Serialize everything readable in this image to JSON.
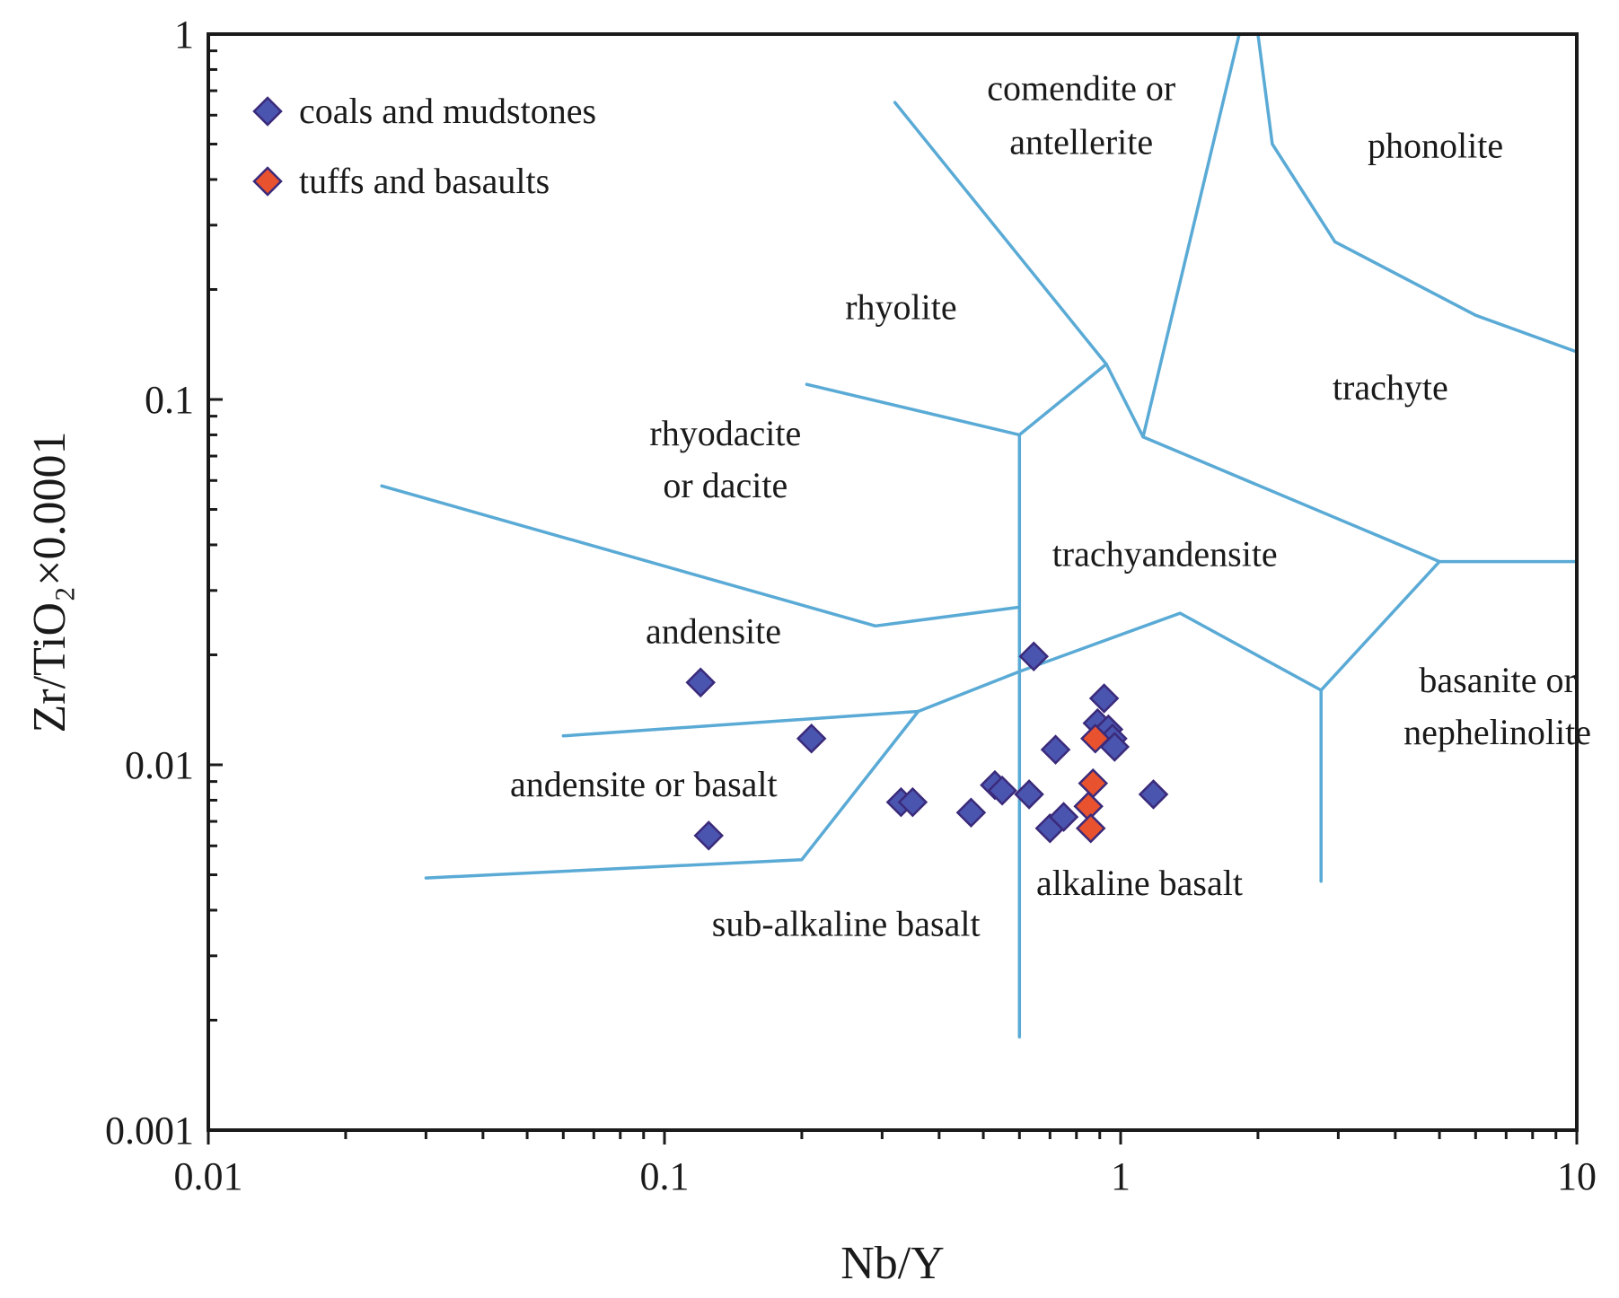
{
  "chart_data": {
    "type": "scatter",
    "xscale": "log",
    "yscale": "log",
    "xlim": [
      0.01,
      10
    ],
    "ylim": [
      0.001,
      1
    ],
    "xlabel": "Nb/Y",
    "ylabel": "Zr/TiO₂×0.0001",
    "x_tick_labels": [
      {
        "value": 0.01,
        "label": "0.01"
      },
      {
        "value": 0.1,
        "label": "0.1"
      },
      {
        "value": 1,
        "label": "1"
      },
      {
        "value": 10,
        "label": "10"
      }
    ],
    "y_tick_labels": [
      {
        "value": 0.001,
        "label": "0.001"
      },
      {
        "value": 0.01,
        "label": "0.01"
      },
      {
        "value": 0.1,
        "label": "0.1"
      },
      {
        "value": 1,
        "label": "1"
      }
    ],
    "legend_position": "top-left",
    "series": [
      {
        "name": "coals and mudstones",
        "color": "#4a55b0",
        "marker": "diamond",
        "points": [
          [
            0.12,
            0.0168
          ],
          [
            0.21,
            0.0118
          ],
          [
            0.125,
            0.0064
          ],
          [
            0.33,
            0.0079
          ],
          [
            0.35,
            0.0079
          ],
          [
            0.47,
            0.0074
          ],
          [
            0.53,
            0.0088
          ],
          [
            0.55,
            0.0085
          ],
          [
            0.63,
            0.0083
          ],
          [
            0.645,
            0.0198
          ],
          [
            0.7,
            0.0067
          ],
          [
            0.72,
            0.011
          ],
          [
            0.75,
            0.0072
          ],
          [
            0.89,
            0.013
          ],
          [
            0.92,
            0.0152
          ],
          [
            0.94,
            0.0125
          ],
          [
            0.96,
            0.0118
          ],
          [
            0.97,
            0.0112
          ],
          [
            1.18,
            0.0083
          ]
        ]
      },
      {
        "name": "tuffs and basaults",
        "color": "#e8522e",
        "marker": "diamond",
        "points": [
          [
            0.85,
            0.0077
          ],
          [
            0.86,
            0.0067
          ],
          [
            0.87,
            0.0089
          ],
          [
            0.88,
            0.0118
          ]
        ]
      }
    ],
    "field_boundaries": [
      [
        [
          0.32,
          0.65
        ],
        [
          0.93,
          0.125
        ],
        [
          1.12,
          0.079
        ],
        [
          1.82,
          1.0
        ]
      ],
      [
        [
          2.0,
          1.0
        ],
        [
          2.15,
          0.5
        ],
        [
          2.95,
          0.27
        ],
        [
          6.0,
          0.17
        ],
        [
          10,
          0.135
        ]
      ],
      [
        [
          0.205,
          0.11
        ],
        [
          0.6,
          0.08
        ],
        [
          0.93,
          0.125
        ]
      ],
      [
        [
          1.12,
          0.079
        ],
        [
          5.0,
          0.036
        ],
        [
          10,
          0.036
        ]
      ],
      [
        [
          0.6,
          0.08
        ],
        [
          0.6,
          0.0018
        ]
      ],
      [
        [
          0.024,
          0.058
        ],
        [
          0.29,
          0.024
        ],
        [
          0.6,
          0.027
        ]
      ],
      [
        [
          0.06,
          0.012
        ],
        [
          0.36,
          0.014
        ],
        [
          0.6,
          0.018
        ],
        [
          1.35,
          0.026
        ],
        [
          2.75,
          0.016
        ],
        [
          5.0,
          0.036
        ]
      ],
      [
        [
          2.75,
          0.016
        ],
        [
          2.75,
          0.0048
        ]
      ],
      [
        [
          0.03,
          0.0049
        ],
        [
          0.2,
          0.0055
        ],
        [
          0.36,
          0.014
        ]
      ]
    ],
    "region_labels": [
      {
        "text": "comendite or",
        "x": 0.82,
        "y": 0.66
      },
      {
        "text": "antellerite",
        "x": 0.82,
        "y": 0.47
      },
      {
        "text": "phonolite",
        "x": 4.9,
        "y": 0.46
      },
      {
        "text": "rhyolite",
        "x": 0.33,
        "y": 0.166
      },
      {
        "text": "trachyte",
        "x": 3.9,
        "y": 0.1
      },
      {
        "text": "rhyodacite",
        "x": 0.136,
        "y": 0.075
      },
      {
        "text": "or dacite",
        "x": 0.136,
        "y": 0.054
      },
      {
        "text": "trachyandensite",
        "x": 1.25,
        "y": 0.035
      },
      {
        "text": "andensite",
        "x": 0.128,
        "y": 0.0215
      },
      {
        "text": "basanite or",
        "x": 6.7,
        "y": 0.0158
      },
      {
        "text": "nephelinolite",
        "x": 6.7,
        "y": 0.0114
      },
      {
        "text": "andensite or basalt",
        "x": 0.09,
        "y": 0.0082
      },
      {
        "text": "alkaline basalt",
        "x": 1.1,
        "y": 0.0044
      },
      {
        "text": "sub-alkaline basalt",
        "x": 0.25,
        "y": 0.0034
      }
    ]
  }
}
